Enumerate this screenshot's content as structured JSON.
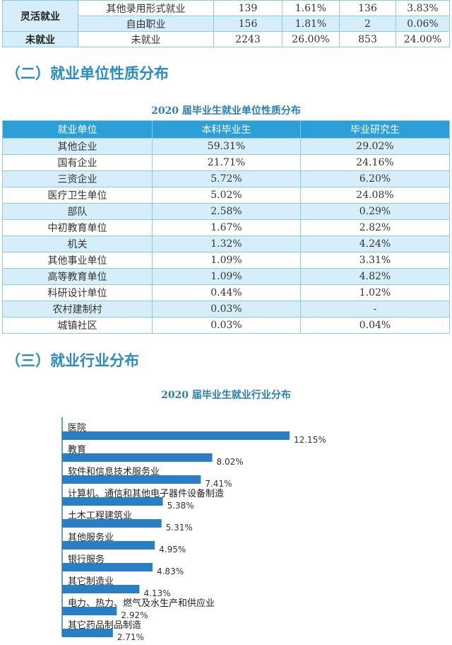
{
  "table1": {
    "rows": [
      {
        "category": "灵活就业",
        "cells": [
          "其他录用形式就业",
          "139",
          "1.61%",
          "136",
          "3.83%"
        ]
      },
      {
        "category": "",
        "cells": [
          "自由职业",
          "156",
          "1.81%",
          "2",
          "0.06%"
        ]
      },
      {
        "category": "未就业",
        "cells": [
          "未就业",
          "2243",
          "26.00%",
          "853",
          "24.00%"
        ]
      }
    ]
  },
  "section2": {
    "heading": "（二）就业单位性质分布",
    "caption": "2020 届毕业生就业单位性质分布",
    "headers": [
      "就业单位",
      "本科毕业生",
      "毕业研究生"
    ],
    "rows": [
      [
        "其他企业",
        "59.31%",
        "29.02%"
      ],
      [
        "国有企业",
        "21.71%",
        "24.16%"
      ],
      [
        "三资企业",
        "5.72%",
        "6.20%"
      ],
      [
        "医疗卫生单位",
        "5.02%",
        "24.08%"
      ],
      [
        "部队",
        "2.58%",
        "0.29%"
      ],
      [
        "中初教育单位",
        "1.67%",
        "2.82%"
      ],
      [
        "机关",
        "1.32%",
        "4.24%"
      ],
      [
        "其他事业单位",
        "1.09%",
        "3.31%"
      ],
      [
        "高等教育单位",
        "1.09%",
        "4.82%"
      ],
      [
        "科研设计单位",
        "0.44%",
        "1.02%"
      ],
      [
        "农村建制村",
        "0.03%",
        "-"
      ],
      [
        "城镇社区",
        "0.03%",
        "0.04%"
      ]
    ]
  },
  "section3": {
    "heading": "（三）就业行业分布",
    "caption": "2020 届毕业生就业行业分布"
  },
  "chart_data": {
    "type": "bar",
    "orientation": "horizontal",
    "title": "2020 届毕业生就业行业分布",
    "categories": [
      "医院",
      "教育",
      "软件和信息技术服务业",
      "计算机、通信和其他电子器件设备制造",
      "土木工程建筑业",
      "其他服务业",
      "银行服务",
      "其它制造业",
      "电力、热力、燃气及水生产和供应业",
      "其它药品制品制造"
    ],
    "values": [
      12.15,
      8.02,
      7.41,
      5.38,
      5.31,
      4.95,
      4.83,
      4.13,
      2.92,
      2.71
    ],
    "labels": [
      "12.15%",
      "8.02%",
      "7.41%",
      "5.38%",
      "5.31%",
      "4.95%",
      "4.83%",
      "4.13%",
      "2.92%",
      "2.71%"
    ],
    "bar_color": "#2a7fc4",
    "grid": false
  },
  "colors": {
    "header": "#2d9fd8",
    "alt_row": "#d6eef9",
    "heading": "#2a8cc0"
  }
}
